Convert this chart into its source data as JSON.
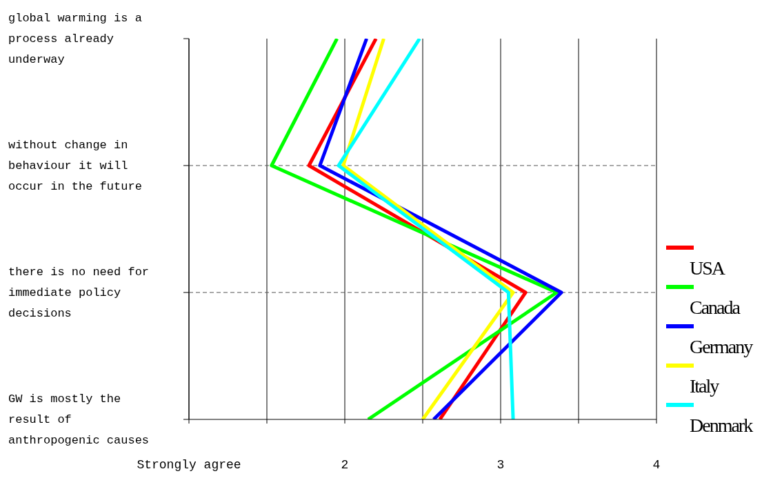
{
  "chart_data": {
    "type": "line",
    "orientation": "horizontal",
    "categories": [
      "global warming is a process already underway",
      "without change in behaviour it will occur in the future",
      "there is no need for immediate policy decisions",
      "GW is mostly the result of anthropogenic causes"
    ],
    "series": [
      {
        "name": "USA",
        "color": "#ff0000",
        "values": [
          2.2,
          1.77,
          3.16,
          2.61
        ]
      },
      {
        "name": "Canada",
        "color": "#00ff00",
        "values": [
          1.95,
          1.53,
          3.36,
          2.15
        ]
      },
      {
        "name": "Germany",
        "color": "#0000ff",
        "values": [
          2.14,
          1.84,
          3.39,
          2.57
        ]
      },
      {
        "name": "Italy",
        "color": "#ffff00",
        "values": [
          2.25,
          1.99,
          3.08,
          2.5
        ]
      },
      {
        "name": "Denmark",
        "color": "#00ffff",
        "values": [
          2.48,
          1.96,
          3.05,
          3.08
        ]
      }
    ],
    "xlim": [
      1,
      4
    ],
    "xticks": [
      {
        "value": 1,
        "label": "Strongly agree"
      },
      {
        "value": 1.5,
        "label": null
      },
      2,
      {
        "value": 2.5,
        "label": null
      },
      3,
      {
        "value": 3.5,
        "label": null
      },
      4
    ],
    "grid": true,
    "legend": "right",
    "marker": "none",
    "line_style": "solid"
  }
}
